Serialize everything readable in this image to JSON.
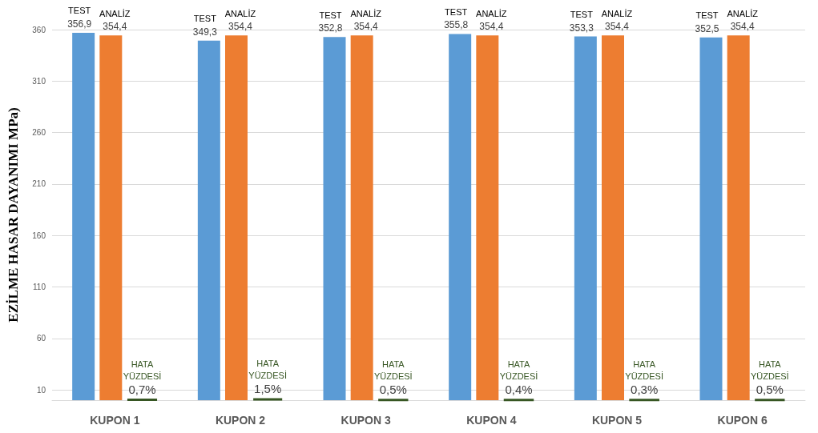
{
  "chart_data": {
    "type": "bar",
    "ylabel": "EZİLME HASAR DAYANIMI MPa)",
    "categories": [
      "KUPON 1",
      "KUPON 2",
      "KUPON 3",
      "KUPON 4",
      "KUPON 5",
      "KUPON 6"
    ],
    "series": [
      {
        "name": "TEST",
        "color": "#5b9bd5",
        "values": [
          356.9,
          349.3,
          352.8,
          355.8,
          353.3,
          352.5
        ],
        "value_labels": [
          "356,9",
          "349,3",
          "352,8",
          "355,8",
          "353,3",
          "352,5"
        ]
      },
      {
        "name": "ANALİZ",
        "color": "#ed7d31",
        "values": [
          354.4,
          354.4,
          354.4,
          354.4,
          354.4,
          354.4
        ],
        "value_labels": [
          "354,4",
          "354,4",
          "354,4",
          "354,4",
          "354,4",
          "354,4"
        ]
      },
      {
        "name": "HATA YÜZDESİ",
        "color": "#375623",
        "values": [
          0.7,
          1.5,
          0.5,
          0.4,
          0.3,
          0.5
        ],
        "value_labels": [
          "0,7%",
          "1,5%",
          "0,5%",
          "0,4%",
          "0,3%",
          "0,5%"
        ]
      }
    ],
    "ylim": [
      0,
      360
    ],
    "yticks": [
      10,
      60,
      110,
      160,
      210,
      260,
      310,
      360
    ],
    "grid": "y",
    "legend": false
  }
}
